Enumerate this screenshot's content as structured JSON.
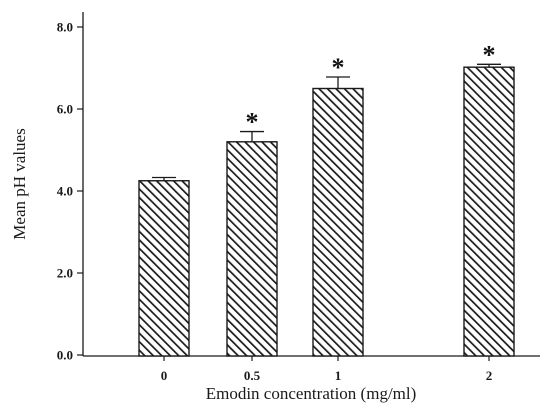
{
  "chart_data": {
    "type": "bar",
    "title": "",
    "xlabel": "Emodin concentration (mg/ml)",
    "ylabel": "Mean pH values",
    "categories": [
      "0",
      "0.5",
      "1",
      "2"
    ],
    "values": [
      4.25,
      5.2,
      6.5,
      7.02
    ],
    "errors": [
      0.08,
      0.25,
      0.28,
      0.07
    ],
    "significance": [
      "",
      "*",
      "*",
      "*"
    ],
    "ylim": [
      0,
      8.5
    ],
    "yticks": [
      0,
      2,
      4,
      6,
      8
    ],
    "ytick_labels": [
      "0.0",
      "2.0",
      "4.0",
      "6.0",
      "8.0"
    ],
    "grid": false,
    "legend": "none",
    "bar_fill": "diagonal-hatch",
    "colors": {
      "bar_stroke": "#1a1a1a",
      "hatch": "#1a1a1a",
      "background": "#ffffff"
    }
  }
}
